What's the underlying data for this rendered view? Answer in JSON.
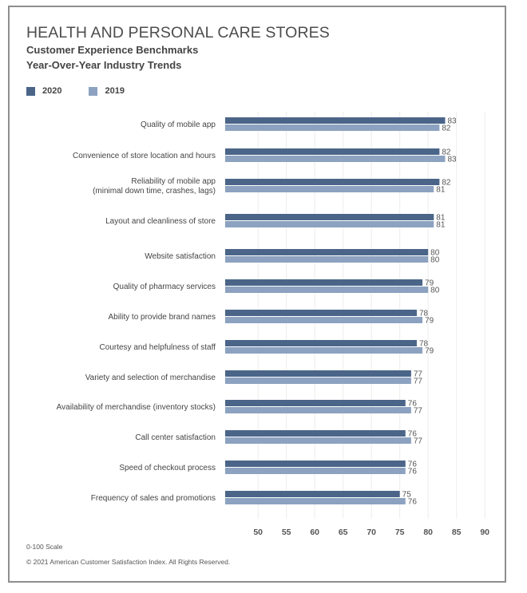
{
  "chart_data": {
    "type": "bar",
    "orientation": "horizontal",
    "title": "HEALTH AND PERSONAL CARE STORES",
    "subtitles": [
      "Customer Experience Benchmarks",
      "Year-Over-Year Industry Trends"
    ],
    "categories": [
      [
        "Quality of mobile app"
      ],
      [
        "Convenience of store location and hours"
      ],
      [
        "Reliability of mobile app",
        "(minimal down time, crashes, lags)"
      ],
      [
        "Layout and cleanliness of store"
      ],
      [
        "Website satisfaction"
      ],
      [
        "Quality of pharmacy services"
      ],
      [
        "Ability to provide brand names"
      ],
      [
        "Courtesy and helpfulness of staff"
      ],
      [
        "Variety and selection of merchandise"
      ],
      [
        "Availability of merchandise (inventory stocks)"
      ],
      [
        "Call center satisfaction"
      ],
      [
        "Speed of checkout process"
      ],
      [
        "Frequency of sales and promotions"
      ]
    ],
    "series": [
      {
        "name": "2020",
        "color": "#4b6589",
        "values": [
          83,
          82,
          82,
          81,
          80,
          79,
          78,
          78,
          77,
          76,
          76,
          76,
          75
        ]
      },
      {
        "name": "2019",
        "color": "#8ca2c0",
        "values": [
          82,
          83,
          81,
          81,
          80,
          80,
          79,
          79,
          77,
          77,
          77,
          76,
          76
        ]
      }
    ],
    "xticks": [
      50,
      55,
      60,
      65,
      70,
      75,
      80,
      85,
      90
    ],
    "xlim": [
      44.2,
      91
    ],
    "grid": "vertical",
    "legend": "top-left",
    "xlabel": "",
    "ylabel": ""
  },
  "footer": {
    "scale_note": "0-100 Scale",
    "copyright": "© 2021 American Customer Satisfaction Index. All Rights Reserved."
  }
}
